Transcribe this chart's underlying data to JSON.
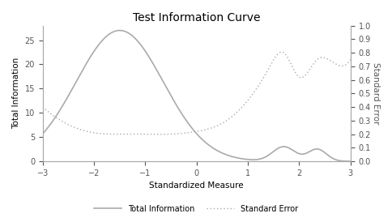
{
  "title": "Test Information Curve",
  "xlabel": "Standardized Measure",
  "ylabel_left": "Total Information",
  "ylabel_right": "Standard Error",
  "xlim": [
    -3,
    3
  ],
  "ylim_left": [
    0,
    28
  ],
  "ylim_right": [
    0.0,
    1.0
  ],
  "xticks": [
    -3,
    -2,
    -1,
    0,
    1,
    2,
    3
  ],
  "yticks_left": [
    0,
    5,
    10,
    15,
    20,
    25
  ],
  "yticks_right": [
    0.0,
    0.1,
    0.2,
    0.3,
    0.4,
    0.5,
    0.6,
    0.7,
    0.8,
    0.9,
    1.0
  ],
  "line_color": "#aaaaaa",
  "title_fontsize": 10,
  "axis_fontsize": 7.5,
  "tick_fontsize": 7,
  "legend_fontsize": 7
}
